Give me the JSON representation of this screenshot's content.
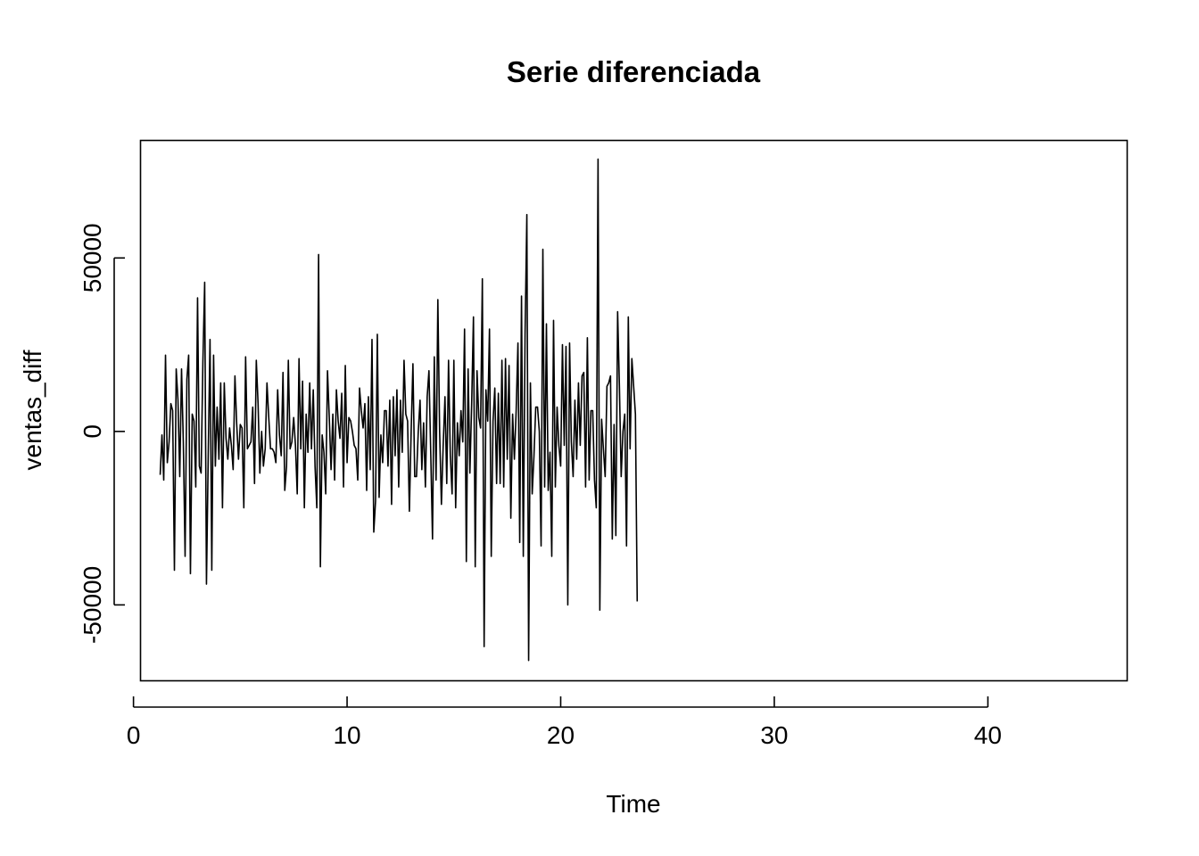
{
  "chart_data": {
    "type": "line",
    "title": "Serie diferenciada",
    "xlabel": "Time",
    "ylabel": "ventas_diff",
    "xlim": [
      0.35,
      46.5
    ],
    "ylim": [
      -72000,
      84000
    ],
    "x_ticks": [
      0,
      10,
      20,
      30,
      40
    ],
    "x_tick_labels": [
      "0",
      "10",
      "20",
      "30",
      "40"
    ],
    "y_ticks": [
      -50000,
      0,
      50000
    ],
    "y_tick_labels": [
      "-50000",
      "0",
      "50000"
    ],
    "grid": false,
    "legend": "none",
    "line_color": "#000000",
    "series": [
      {
        "x_start": 1.25,
        "x_step": 0.08333,
        "values": [
          -12500,
          -1000,
          -14000,
          22000,
          -9000,
          -3000,
          8000,
          6000,
          -40000,
          18000,
          9000,
          -13000,
          18000,
          -3000,
          -36000,
          15000,
          22000,
          -41000,
          5000,
          3000,
          -16000,
          38500,
          -10000,
          -12000,
          20000,
          43000,
          -44000,
          -7000,
          26500,
          -40000,
          22000,
          -10000,
          7000,
          -8000,
          14000,
          -22000,
          14000,
          -2000,
          -8000,
          1000,
          -4000,
          -11000,
          16000,
          2000,
          -8000,
          2000,
          1000,
          -22000,
          21500,
          -5000,
          -4000,
          -3000,
          7000,
          -15000,
          20500,
          8000,
          -12000,
          0,
          -10000,
          -5000,
          14000,
          4000,
          -5000,
          -5000,
          -6000,
          -9000,
          12000,
          -1000,
          -7000,
          17000,
          -17000,
          -10000,
          20500,
          -5000,
          -3000,
          4000,
          -4000,
          -18000,
          21000,
          -5000,
          14500,
          -22000,
          5000,
          -6000,
          14000,
          -5000,
          12000,
          -10000,
          -22000,
          51000,
          -39000,
          -1000,
          -6000,
          -18000,
          17500,
          4000,
          -11000,
          5000,
          -14000,
          12000,
          3000,
          -2000,
          11000,
          -16000,
          19000,
          -9000,
          4000,
          3000,
          0,
          -4000,
          -5000,
          -14000,
          12500,
          6000,
          1000,
          8000,
          -17000,
          10000,
          -11000,
          26500,
          -29000,
          -20000,
          28000,
          -19000,
          -1000,
          -9000,
          6000,
          6000,
          -10000,
          9000,
          -21000,
          10000,
          -7000,
          12000,
          -16000,
          9000,
          -6000,
          20500,
          5000,
          3000,
          -23000,
          0,
          19500,
          -13000,
          -13000,
          0,
          9000,
          -11000,
          2500,
          -16000,
          10000,
          17500,
          -6000,
          -31000,
          21500,
          -14000,
          38000,
          0,
          -21000,
          -4000,
          10000,
          -15000,
          20500,
          -7000,
          -18000,
          20500,
          -22000,
          2500,
          -7000,
          6000,
          -3000,
          29500,
          -37500,
          18000,
          -12000,
          8000,
          33000,
          -39000,
          17500,
          4000,
          1000,
          44000,
          -62000,
          12000,
          3000,
          29500,
          -36000,
          3000,
          12500,
          -15000,
          11000,
          -15000,
          20500,
          -16000,
          21000,
          -8000,
          19000,
          -25000,
          5000,
          -8000,
          6000,
          25500,
          -32000,
          39000,
          -36000,
          28000,
          62500,
          -66000,
          14000,
          -18000,
          -7000,
          7000,
          7000,
          0,
          -33000,
          52500,
          -16000,
          31000,
          -17000,
          -6000,
          -36000,
          32000,
          -16000,
          7000,
          -4000,
          -10000,
          25000,
          -4000,
          24500,
          -50000,
          25500,
          -3000,
          -13000,
          9000,
          -8000,
          14000,
          -4000,
          16000,
          17000,
          -16000,
          27000,
          -14000,
          6000,
          6000,
          -14000,
          -22000,
          78500,
          -51500,
          3500,
          -5000,
          -13000,
          13000,
          14000,
          16000,
          -31000,
          2000,
          -30000,
          34500,
          13000,
          -13000,
          0,
          5000,
          -33000,
          33000,
          -5000,
          21000,
          13000,
          5000,
          -49000
        ]
      }
    ]
  }
}
